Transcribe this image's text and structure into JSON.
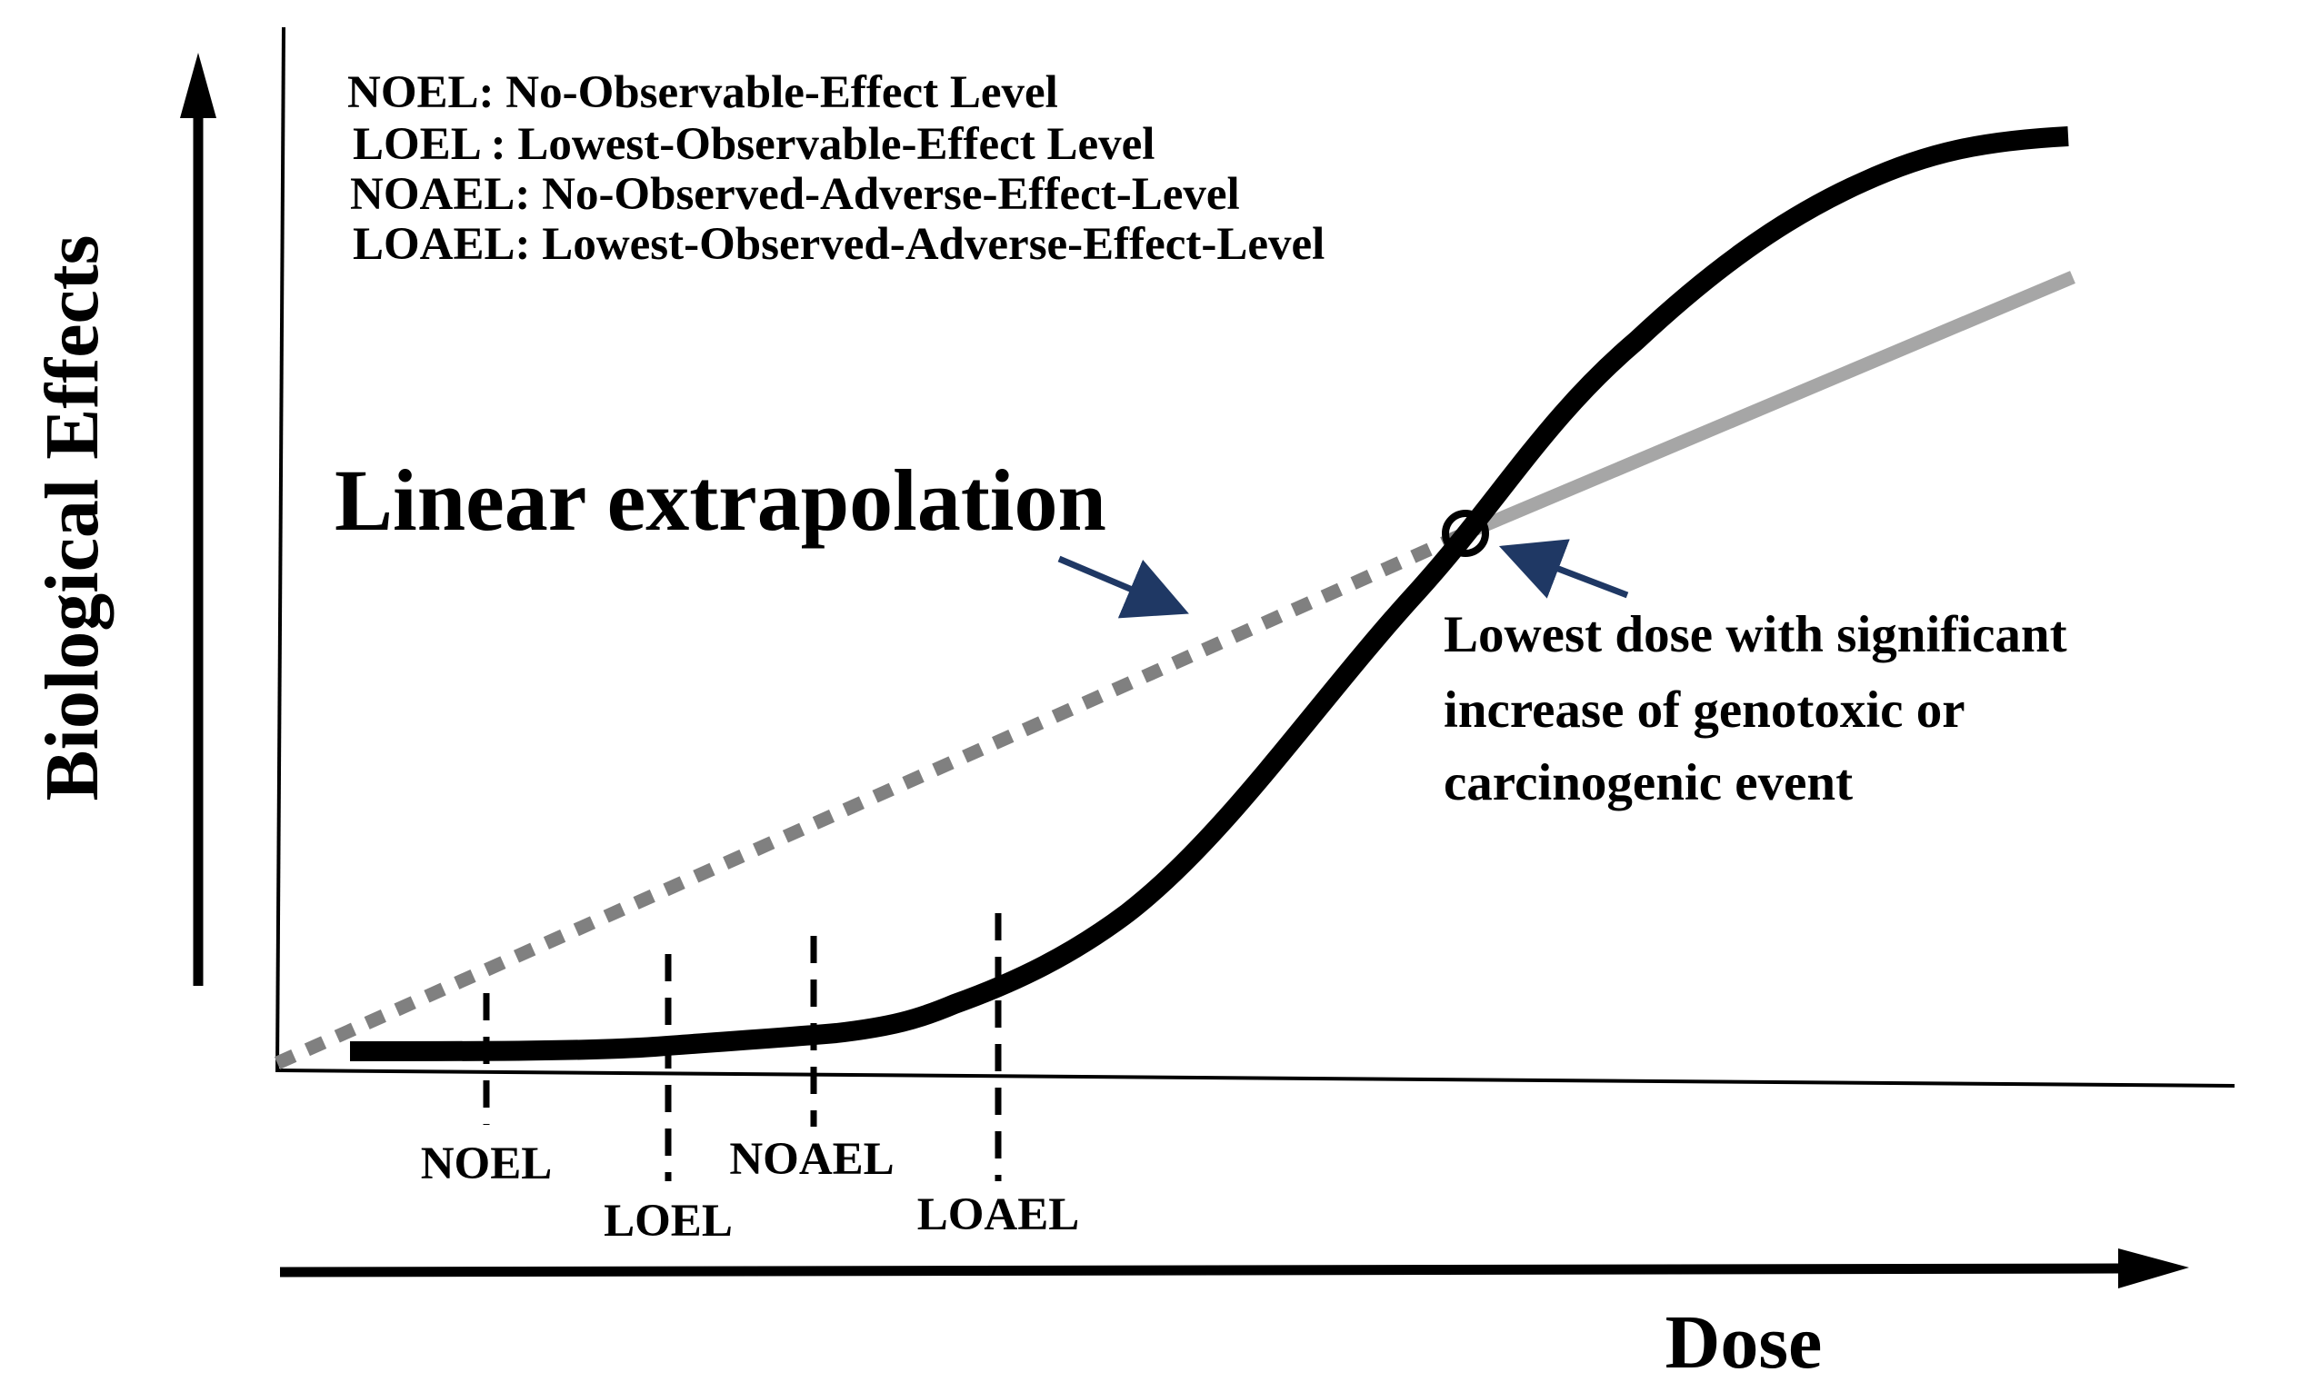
{
  "legend": [
    {
      "abbr": "NOEL:",
      "text": "No-Observable-Effect Level"
    },
    {
      "abbr": "LOEL :",
      "text": "Lowest-Observable-Effect Level"
    },
    {
      "abbr": "NOAEL:",
      "text": "No-Observed-Adverse-Effect-Level"
    },
    {
      "abbr": "LOAEL:",
      "text": "Lowest-Observed-Adverse-Effect-Level"
    }
  ],
  "axes": {
    "y_title": "Biological Effects",
    "x_title": "Dose"
  },
  "annotations": {
    "extrapolation_label": "Linear extrapolation",
    "threshold_note": [
      "Lowest dose with significant",
      "increase of genotoxic or",
      "carcinogenic event"
    ]
  },
  "markers": [
    {
      "label": "NOEL"
    },
    {
      "label": "LOEL"
    },
    {
      "label": "NOAEL"
    },
    {
      "label": "LOAEL"
    }
  ],
  "colors": {
    "curve": "#000000",
    "extrapolation": "#808080",
    "extension": "#a6a6a6",
    "arrow": "#1f3864"
  }
}
